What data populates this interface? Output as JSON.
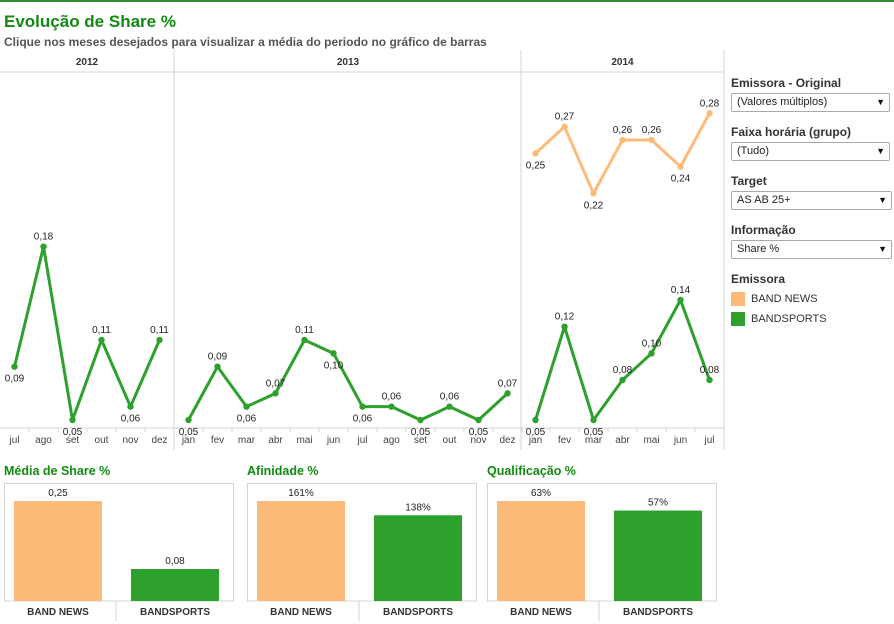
{
  "header": {
    "title": "Evolução de Share %",
    "subtitle": "Clique nos meses desejados para visualizar a média do periodo no gráfico de barras"
  },
  "colors": {
    "band_news": "#fdbb7a",
    "bandsports": "#2ea02e",
    "title_green": "#128a12"
  },
  "filters": [
    {
      "label": "Emissora - Original",
      "value": "(Valores múltiplos)"
    },
    {
      "label": "Faixa horária (grupo)",
      "value": "(Tudo)"
    },
    {
      "label": "Target",
      "value": "AS AB 25+"
    },
    {
      "label": "Informação",
      "value": "Share %"
    }
  ],
  "legend": {
    "title": "Emissora",
    "items": [
      {
        "label": "BAND NEWS",
        "color": "#fdbb7a"
      },
      {
        "label": "BANDSPORTS",
        "color": "#2ea02e"
      }
    ]
  },
  "chart_data": [
    {
      "type": "line",
      "title": "",
      "panels": [
        {
          "year": "2012",
          "months": [
            "jul",
            "ago",
            "set",
            "out",
            "nov",
            "dez"
          ],
          "series": [
            {
              "name": "BANDSPORTS",
              "values": [
                0.09,
                0.18,
                0.05,
                0.11,
                0.06,
                0.11
              ],
              "labels": [
                "0,09",
                "0,18",
                "0,05",
                "0,11",
                "0,06",
                "0,11"
              ]
            }
          ]
        },
        {
          "year": "2013",
          "months": [
            "jan",
            "fev",
            "mar",
            "abr",
            "mai",
            "jun",
            "jul",
            "ago",
            "set",
            "out",
            "nov",
            "dez"
          ],
          "series": [
            {
              "name": "BANDSPORTS",
              "values": [
                0.05,
                0.09,
                0.06,
                0.07,
                0.11,
                0.1,
                0.06,
                0.06,
                0.05,
                0.06,
                0.05,
                0.07
              ],
              "labels": [
                "0,05",
                "0,09",
                "0,06",
                "0,07",
                "0,11",
                "0,10",
                "0,06",
                "0,06",
                "0,05",
                "0,06",
                "0,05",
                "0,07"
              ]
            }
          ]
        },
        {
          "year": "2014",
          "months": [
            "jan",
            "fev",
            "mar",
            "abr",
            "mai",
            "jun",
            "jul"
          ],
          "series": [
            {
              "name": "BAND NEWS",
              "values": [
                0.25,
                0.27,
                0.22,
                0.26,
                0.26,
                0.24,
                0.28
              ],
              "labels": [
                "0,25",
                "0,27",
                "0,22",
                "0,26",
                "0,26",
                "0,24",
                "0,28"
              ]
            },
            {
              "name": "BANDSPORTS",
              "values": [
                0.05,
                0.12,
                0.05,
                0.08,
                0.1,
                0.14,
                0.08
              ],
              "labels": [
                "0,05",
                "0,12",
                "0,05",
                "0,08",
                "0,10",
                "0,14",
                "0,08"
              ]
            }
          ]
        }
      ],
      "grid": false,
      "legend": "right"
    },
    {
      "type": "bar",
      "title": "Média de Share %",
      "categories": [
        "BAND NEWS",
        "BANDSPORTS"
      ],
      "values": [
        0.25,
        0.08
      ],
      "labels": [
        "0,25",
        "0,08"
      ]
    },
    {
      "type": "bar",
      "title": "Afinidade %",
      "categories": [
        "BAND NEWS",
        "BANDSPORTS"
      ],
      "values": [
        161,
        138
      ],
      "labels": [
        "161%",
        "138%"
      ]
    },
    {
      "type": "bar",
      "title": "Qualificação %",
      "categories": [
        "BAND NEWS",
        "BANDSPORTS"
      ],
      "values": [
        63,
        57
      ],
      "labels": [
        "63%",
        "57%"
      ]
    }
  ]
}
